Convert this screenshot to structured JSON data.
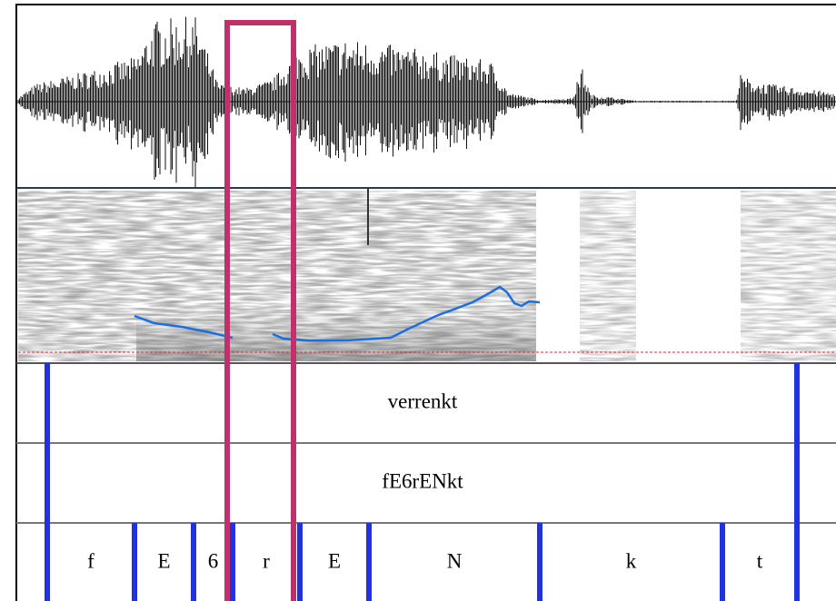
{
  "word_tier": {
    "label": "verrenkt"
  },
  "canonical_tier": {
    "label": "fE6rENkt"
  },
  "phone_tier": {
    "labels": [
      "f",
      "E",
      "6",
      "r",
      "E",
      "N",
      "k",
      "t"
    ]
  }
}
